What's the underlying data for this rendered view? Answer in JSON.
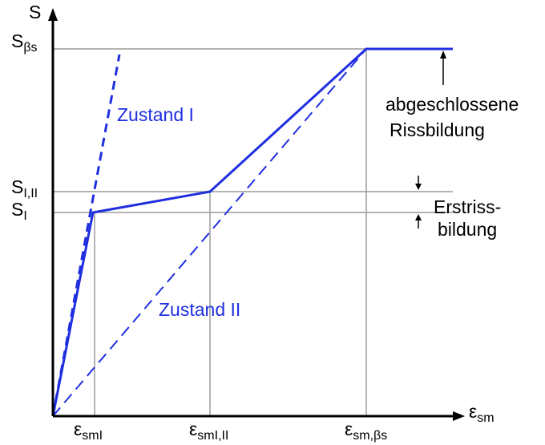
{
  "diagram": {
    "y_axis": {
      "symbol": "S"
    },
    "x_axis": {
      "symbol": "ε",
      "subscript": "sm"
    },
    "y_levels": [
      {
        "key": "s_beta_s",
        "symbol": "S",
        "subscript": "βs"
      },
      {
        "key": "s_i_ii",
        "symbol": "S",
        "subscript": "I,II"
      },
      {
        "key": "s_i",
        "symbol": "S",
        "subscript": "I"
      }
    ],
    "x_levels": [
      {
        "key": "eps_smi",
        "symbol": "ε",
        "subscript": "smI"
      },
      {
        "key": "eps_smi_ii",
        "symbol": "ε",
        "subscript": "smI,II"
      },
      {
        "key": "eps_sm_beta_s",
        "symbol": "ε",
        "subscript": "sm,βs"
      }
    ],
    "curves": [
      {
        "key": "zustand_1",
        "label": "Zustand I",
        "style": "dashed"
      },
      {
        "key": "zustand_2",
        "label": "Zustand II",
        "style": "dashed"
      },
      {
        "key": "sm_curve",
        "label": "",
        "style": "solid"
      }
    ],
    "annotations": {
      "final_cracking_line1": "abgeschlossene",
      "final_cracking_line2": "Rissbildung",
      "first_cracking_line1": "Erstriss-",
      "first_cracking_line2": "bildung"
    },
    "colors": {
      "curve": "#1f2fe0",
      "guide_line": "#9a9a9a",
      "axis": "#000000"
    }
  }
}
